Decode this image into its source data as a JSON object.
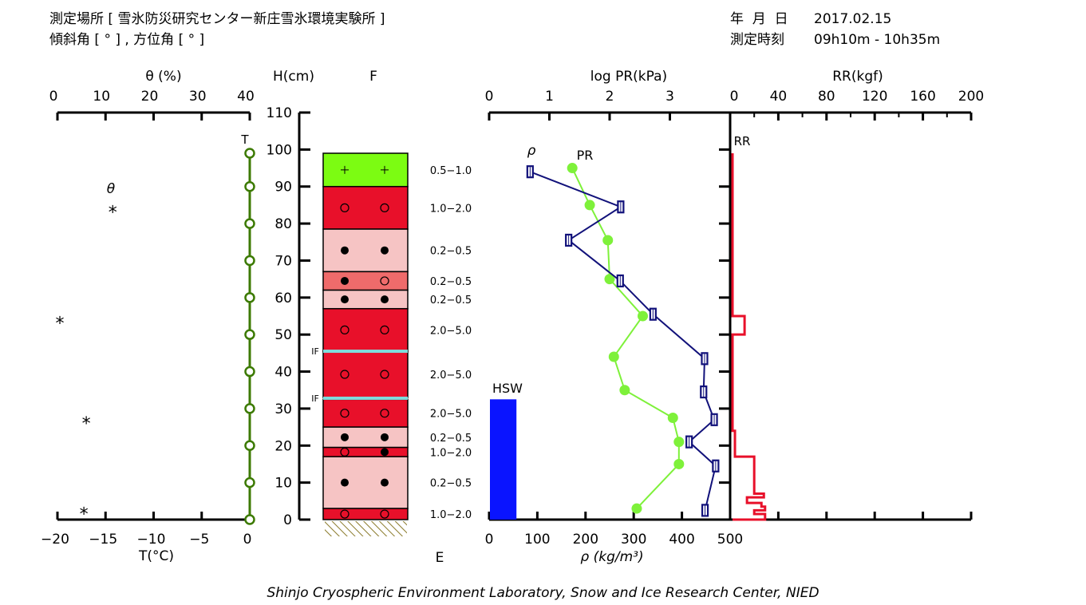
{
  "header": {
    "site_line": "測定場所 [ 雪氷防災研究センター新庄雪氷環境実験所 ]",
    "angle_line": "傾斜角 [ ° ] , 方位角 [ ° ]",
    "date_label": "年  月  日",
    "date": "2017.02.15",
    "time_label": "測定時刻",
    "time": "09h10m - 10h35m"
  },
  "footer": "Shinjo Cryospheric Environment Laboratory, Snow and Ice Research Center, NIED",
  "colors": {
    "green": "#3c7a00",
    "pr": "#7ef13a",
    "density": "#11117a",
    "rr": "#e8102a",
    "hsw": "#0a14ff",
    "layer_red": "#e8102a",
    "layer_pink": "#f6c4c4",
    "layer_mid": "#ef6b6b",
    "layer_green": "#7cfc12",
    "ice": "#7fdcdc",
    "hatch": "#8a7a2a"
  },
  "chart_data": [
    {
      "type": "scatter",
      "name": "slope-and-temperature",
      "axis_top": {
        "label": "θ (%)",
        "ticks": [
          "0",
          "10",
          "20",
          "30",
          "40"
        ],
        "range": [
          0,
          40
        ]
      },
      "axis_bottom": {
        "label": "T(°C)",
        "ticks": [
          "−20",
          "−15",
          "−10",
          "−5",
          "0"
        ],
        "range": [
          -20,
          0
        ]
      },
      "theta_label": "θ",
      "theta_marker": "*",
      "theta_points": [
        {
          "theta": 11.5,
          "h": 84
        },
        {
          "theta": 0.5,
          "h": 54
        },
        {
          "theta": 6,
          "h": 27
        },
        {
          "theta": 5.5,
          "h": 2.5
        }
      ],
      "temperature_label": "T",
      "temperature_points": [
        {
          "t": 0,
          "h": 99
        },
        {
          "t": 0,
          "h": 90
        },
        {
          "t": 0,
          "h": 80
        },
        {
          "t": 0,
          "h": 70
        },
        {
          "t": 0,
          "h": 60
        },
        {
          "t": 0,
          "h": 50
        },
        {
          "t": 0,
          "h": 40
        },
        {
          "t": 0,
          "h": 30
        },
        {
          "t": 0,
          "h": 20
        },
        {
          "t": 0,
          "h": 10
        },
        {
          "t": 0,
          "h": 0
        }
      ]
    },
    {
      "type": "table",
      "name": "snow-layers",
      "height_axis": {
        "label": "H(cm)",
        "ticks": [
          "0",
          "10",
          "20",
          "30",
          "40",
          "50",
          "60",
          "70",
          "80",
          "90",
          "100",
          "110"
        ],
        "range": [
          0,
          110
        ]
      },
      "column_top_label": "F",
      "column_bottom_label": "E",
      "ice_label": "IF",
      "layers": [
        {
          "bottom": 90,
          "top": 99,
          "fill": "green",
          "sym_left": "+",
          "sym_right": "+",
          "size": "0.5−1.0"
        },
        {
          "bottom": 78.5,
          "top": 90,
          "fill": "red",
          "sym_left": "o",
          "sym_right": "o",
          "size": "1.0−2.0"
        },
        {
          "bottom": 67,
          "top": 78.5,
          "fill": "pink",
          "sym_left": "●",
          "sym_right": "●",
          "size": "0.2−0.5"
        },
        {
          "bottom": 62,
          "top": 67,
          "fill": "mid",
          "sym_left": "●",
          "sym_right": "o",
          "size": "0.2−0.5"
        },
        {
          "bottom": 57,
          "top": 62,
          "fill": "pink",
          "sym_left": "●",
          "sym_right": "●",
          "size": "0.2−0.5"
        },
        {
          "bottom": 45.5,
          "top": 57,
          "fill": "red",
          "sym_left": "o",
          "sym_right": "o",
          "size": "2.0−5.0"
        },
        {
          "bottom": 33,
          "top": 45.5,
          "fill": "red",
          "sym_left": "o",
          "sym_right": "o",
          "size": "2.0−5.0"
        },
        {
          "bottom": 25,
          "top": 32.5,
          "fill": "red",
          "sym_left": "o",
          "sym_right": "o",
          "size": "2.0−5.0"
        },
        {
          "bottom": 19.5,
          "top": 25,
          "fill": "pink",
          "sym_left": "●",
          "sym_right": "●",
          "size": "0.2−0.5"
        },
        {
          "bottom": 17,
          "top": 19.5,
          "fill": "red",
          "sym_left": "o",
          "sym_right": "●",
          "size": "1.0−2.0"
        },
        {
          "bottom": 3,
          "top": 17,
          "fill": "pink",
          "sym_left": "●",
          "sym_right": "●",
          "size": "0.2−0.5"
        },
        {
          "bottom": 0,
          "top": 3,
          "fill": "red",
          "sym_left": "o",
          "sym_right": "o",
          "size": "1.0−2.0"
        }
      ],
      "ice_layers": [
        45.5,
        32.8
      ]
    },
    {
      "type": "line",
      "name": "pr-density-rr",
      "axis_top_pr": {
        "label": "log PR(kPa)",
        "ticks": [
          "0",
          "1",
          "2",
          "3"
        ],
        "range": [
          0,
          4
        ]
      },
      "axis_top_rr": {
        "label": "RR(kgf)",
        "ticks": [
          "0",
          "40",
          "80",
          "120",
          "160",
          "200"
        ],
        "range": [
          0,
          200
        ]
      },
      "axis_bottom_density": {
        "label": "ρ (kg/m³)",
        "ticks": [
          "0",
          "100",
          "200",
          "300",
          "400",
          "500"
        ],
        "range": [
          0,
          500
        ]
      },
      "pr_label": "PR",
      "density_label": "ρ",
      "rr_label": "RR",
      "hsw_label": "HSW",
      "hsw_cm": 32.5,
      "hsw_width_density": 55,
      "pr": [
        {
          "logpr": 1.38,
          "h": 95
        },
        {
          "logpr": 1.67,
          "h": 85
        },
        {
          "logpr": 1.97,
          "h": 75.5
        },
        {
          "logpr": 2.0,
          "h": 65
        },
        {
          "logpr": 2.55,
          "h": 55
        },
        {
          "logpr": 2.07,
          "h": 44
        },
        {
          "logpr": 2.25,
          "h": 35
        },
        {
          "logpr": 3.05,
          "h": 27.5
        },
        {
          "logpr": 3.15,
          "h": 21
        },
        {
          "logpr": 3.15,
          "h": 15
        },
        {
          "logpr": 2.45,
          "h": 3
        }
      ],
      "density": [
        {
          "rho": 85,
          "h": 94
        },
        {
          "rho": 273,
          "h": 84.5
        },
        {
          "rho": 165,
          "h": 75.5
        },
        {
          "rho": 272,
          "h": 64.5
        },
        {
          "rho": 340,
          "h": 55.5
        },
        {
          "rho": 447,
          "h": 43.5
        },
        {
          "rho": 445,
          "h": 34.5
        },
        {
          "rho": 467,
          "h": 27
        },
        {
          "rho": 415,
          "h": 21
        },
        {
          "rho": 470,
          "h": 14.5
        },
        {
          "rho": 448,
          "h": 2.5
        }
      ],
      "rr_profile": [
        {
          "h": 99,
          "rr": 2
        },
        {
          "h": 55,
          "rr": 2
        },
        {
          "h": 55,
          "rr": 12
        },
        {
          "h": 50,
          "rr": 12
        },
        {
          "h": 50,
          "rr": 2
        },
        {
          "h": 24,
          "rr": 2
        },
        {
          "h": 24,
          "rr": 4
        },
        {
          "h": 17,
          "rr": 4
        },
        {
          "h": 17,
          "rr": 20
        },
        {
          "h": 7,
          "rr": 20
        },
        {
          "h": 7,
          "rr": 28
        },
        {
          "h": 6,
          "rr": 28
        },
        {
          "h": 6,
          "rr": 14
        },
        {
          "h": 4.5,
          "rr": 14
        },
        {
          "h": 4.5,
          "rr": 26
        },
        {
          "h": 3.5,
          "rr": 26
        },
        {
          "h": 3.5,
          "rr": 29
        },
        {
          "h": 2.5,
          "rr": 29
        },
        {
          "h": 2.5,
          "rr": 20
        },
        {
          "h": 1.5,
          "rr": 20
        },
        {
          "h": 1.5,
          "rr": 29
        },
        {
          "h": 0,
          "rr": 29
        }
      ]
    }
  ]
}
